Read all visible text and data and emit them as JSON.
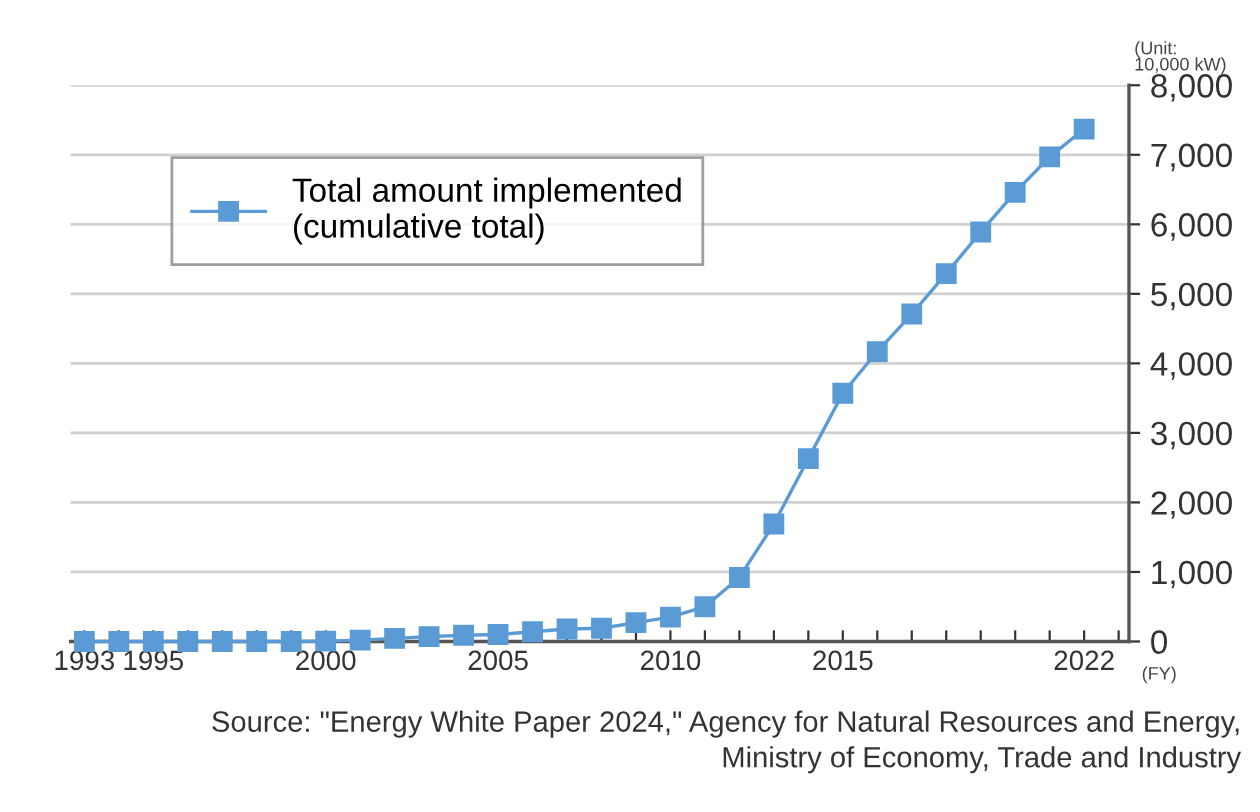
{
  "chart_data": {
    "type": "line",
    "x": [
      1993,
      1994,
      1995,
      1996,
      1997,
      1998,
      1999,
      2000,
      2001,
      2002,
      2003,
      2004,
      2005,
      2006,
      2007,
      2008,
      2009,
      2010,
      2011,
      2012,
      2013,
      2014,
      2015,
      2016,
      2017,
      2018,
      2019,
      2020,
      2021,
      2022
    ],
    "series": [
      {
        "name": "Total amount implemented\n(cumulative total)",
        "color": "#5b9bd5",
        "values": [
          0,
          0,
          0,
          0,
          0,
          0,
          0,
          5,
          20,
          45,
          70,
          90,
          100,
          140,
          180,
          190,
          270,
          350,
          500,
          920,
          1690,
          2630,
          3570,
          4170,
          4710,
          5290,
          5890,
          6460,
          6970,
          7370
        ]
      }
    ],
    "xlim": [
      1992.6,
      2023.3
    ],
    "xticks": [
      1993,
      {
        "value": 1994,
        "label": null
      },
      1995,
      {
        "value": 1996,
        "label": null
      },
      {
        "value": 1997,
        "label": null
      },
      {
        "value": 1998,
        "label": null
      },
      {
        "value": 1999,
        "label": null
      },
      2000,
      {
        "value": 2001,
        "label": null
      },
      {
        "value": 2002,
        "label": null
      },
      {
        "value": 2003,
        "label": null
      },
      {
        "value": 2004,
        "label": null
      },
      2005,
      {
        "value": 2006,
        "label": null
      },
      {
        "value": 2007,
        "label": null
      },
      {
        "value": 2008,
        "label": null
      },
      {
        "value": 2009,
        "label": null
      },
      2010,
      {
        "value": 2011,
        "label": null
      },
      {
        "value": 2012,
        "label": null
      },
      {
        "value": 2013,
        "label": null
      },
      {
        "value": 2014,
        "label": null
      },
      2015,
      {
        "value": 2016,
        "label": null
      },
      {
        "value": 2017,
        "label": null
      },
      {
        "value": 2018,
        "label": null
      },
      {
        "value": 2019,
        "label": null
      },
      {
        "value": 2020,
        "label": null
      },
      {
        "value": 2021,
        "label": null
      },
      2022,
      {
        "value": 2023,
        "label": null
      }
    ],
    "ylim": [
      0,
      8000
    ],
    "yticks": [
      0,
      {
        "value": 1000,
        "label": "1,000"
      },
      {
        "value": 2000,
        "label": "2,000"
      },
      {
        "value": 3000,
        "label": "3,000"
      },
      {
        "value": 4000,
        "label": "4,000"
      },
      {
        "value": 5000,
        "label": "5,000"
      },
      {
        "value": 6000,
        "label": "6,000"
      },
      {
        "value": 7000,
        "label": "7,000"
      },
      {
        "value": 8000,
        "label": "8,000"
      }
    ],
    "ylabel": "(Unit:\n10,000 kW)",
    "xlabel": "(FY)",
    "annotations": [
      "Source: \"Energy White Paper 2024,\" Agency for Natural Resources and Energy,\nMinistry of Economy, Trade and Industry"
    ],
    "grid": "y",
    "legend": "top left",
    "marker": "square",
    "line_style": "solid"
  }
}
